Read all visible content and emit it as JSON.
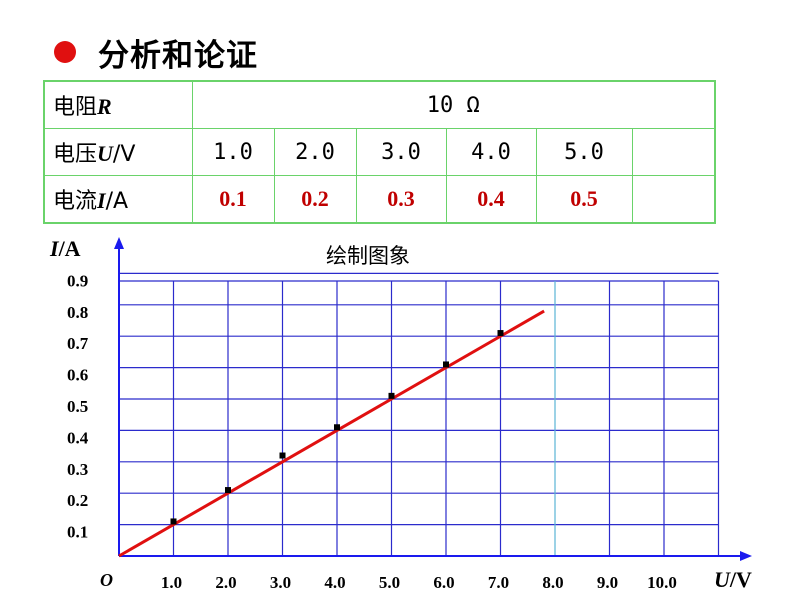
{
  "heading": "分析和论证",
  "table": {
    "r_label_prefix": "电阻",
    "r_label_var": "R",
    "r_value": "10  Ω",
    "u_label_prefix": "电压",
    "u_label_var": "U",
    "u_label_unit": "/V",
    "i_label_prefix": "电流",
    "i_label_var": "I",
    "i_label_unit": "/A",
    "voltages": [
      "1.0",
      "2.0",
      "3.0",
      "4.0",
      "5.0",
      ""
    ],
    "currents": [
      "0.1",
      "0.2",
      "0.3",
      "0.4",
      "0.5",
      ""
    ]
  },
  "chart_data": {
    "type": "scatter",
    "title": "绘制图象",
    "xlabel_var": "U",
    "xlabel_unit": "/V",
    "ylabel_var": "I",
    "ylabel_unit": "/A",
    "origin_label": "O",
    "xlim": [
      0,
      11
    ],
    "ylim": [
      0,
      0.95
    ],
    "x_ticks": [
      "1.0",
      "2.0",
      "3.0",
      "4.0",
      "5.0",
      "6.0",
      "7.0",
      "8.0",
      "9.0",
      "10.0"
    ],
    "y_ticks": [
      "0.1",
      "0.2",
      "0.3",
      "0.4",
      "0.5",
      "0.6",
      "0.7",
      "0.8",
      "0.9"
    ],
    "grid": true,
    "points": [
      {
        "x": 1.0,
        "y": 0.11
      },
      {
        "x": 2.0,
        "y": 0.21
      },
      {
        "x": 3.0,
        "y": 0.32
      },
      {
        "x": 4.0,
        "y": 0.41
      },
      {
        "x": 5.0,
        "y": 0.51
      },
      {
        "x": 6.0,
        "y": 0.61
      },
      {
        "x": 7.0,
        "y": 0.71
      }
    ],
    "fit_line": {
      "x_start": 0,
      "y_start": 0.0,
      "x_end": 7.8,
      "y_end": 0.78
    },
    "colors": {
      "grid": "#2b2bcc",
      "axis": "#1a1aee",
      "line": "#e01010",
      "point": "#000000",
      "highlight_grid": "#5bb5d5"
    }
  }
}
